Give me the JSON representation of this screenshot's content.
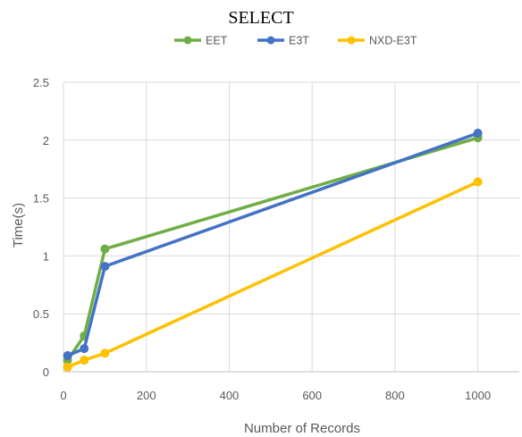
{
  "chart_data": {
    "type": "line",
    "title": "SELECT",
    "xlabel": "Number of Records",
    "ylabel": "Time(s)",
    "xlim": [
      0,
      1100
    ],
    "ylim": [
      0,
      2.5
    ],
    "xticks": [
      0,
      200,
      400,
      600,
      800,
      1000
    ],
    "yticks": [
      0,
      0.5,
      1,
      1.5,
      2,
      2.5
    ],
    "xtick_labels": [
      "0",
      "200",
      "400",
      "600",
      "800",
      "1000"
    ],
    "ytick_labels": [
      "0",
      "0.5",
      "1",
      "1.5",
      "2",
      "2.5"
    ],
    "grid": true,
    "legend_position": "top",
    "series": [
      {
        "name": "EET",
        "color": "#70ad47",
        "x": [
          10,
          50,
          100,
          1000
        ],
        "y": [
          0.1,
          0.31,
          1.06,
          2.02
        ]
      },
      {
        "name": "E3T",
        "color": "#4472c4",
        "x": [
          10,
          50,
          100,
          1000
        ],
        "y": [
          0.14,
          0.2,
          0.91,
          2.06
        ]
      },
      {
        "name": "NXD-E3T",
        "color": "#ffc000",
        "x": [
          10,
          50,
          100,
          1000
        ],
        "y": [
          0.04,
          0.1,
          0.16,
          1.64
        ]
      }
    ]
  }
}
